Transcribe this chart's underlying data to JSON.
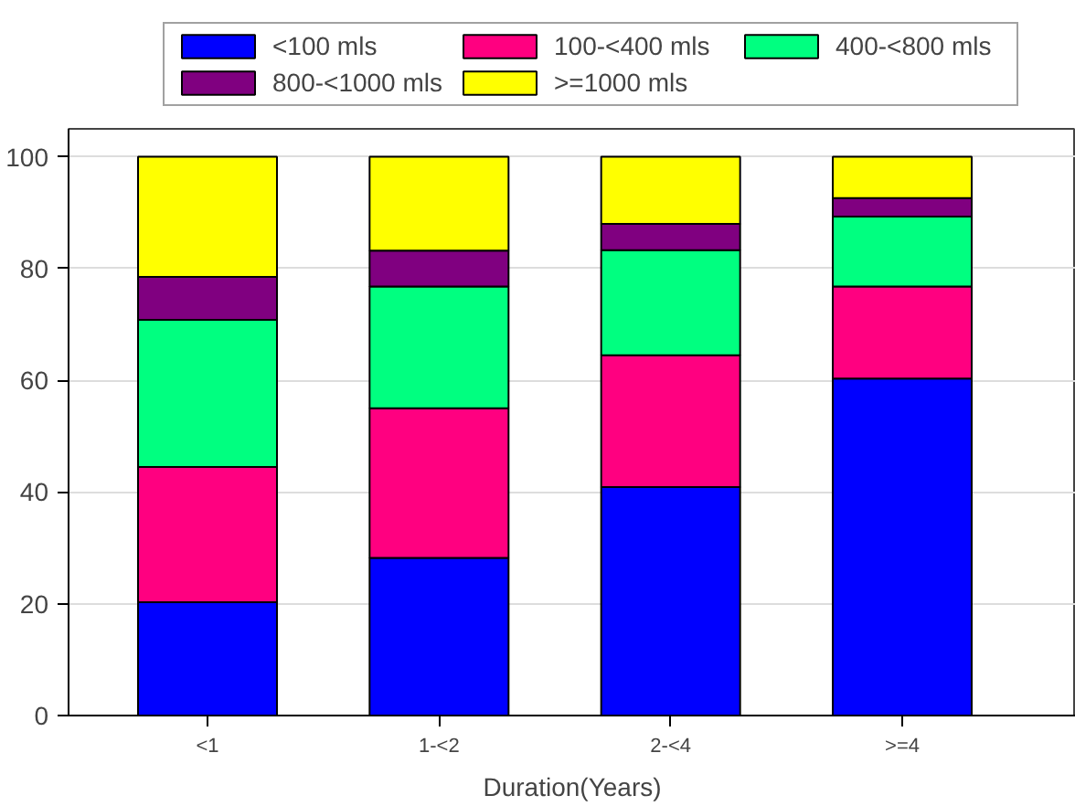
{
  "chart_data": {
    "type": "bar",
    "stacked": true,
    "xlabel": "Duration(Years)",
    "categories": [
      "<1",
      "1-<2",
      "2-<4",
      ">=4"
    ],
    "series": [
      {
        "name": "<100 mls",
        "color": "#0000ff",
        "values": [
          20.3,
          28.2,
          40.9,
          60.3
        ]
      },
      {
        "name": "100-<400 mls",
        "color": "#ff0080",
        "values": [
          24.2,
          26.8,
          23.6,
          16.5
        ]
      },
      {
        "name": "400-<800 mls",
        "color": "#00ff80",
        "values": [
          26.3,
          21.8,
          18.8,
          12.5
        ]
      },
      {
        "name": "800-<1000 mls",
        "color": "#800080",
        "values": [
          7.7,
          6.4,
          4.7,
          3.3
        ]
      },
      {
        "name": ">=1000 mls",
        "color": "#ffff00",
        "values": [
          21.5,
          16.8,
          12.0,
          7.4
        ]
      }
    ],
    "ylim": [
      0,
      105
    ],
    "yticks": [
      0,
      20,
      40,
      60,
      80,
      100
    ],
    "grid": "y",
    "legend": "top"
  }
}
